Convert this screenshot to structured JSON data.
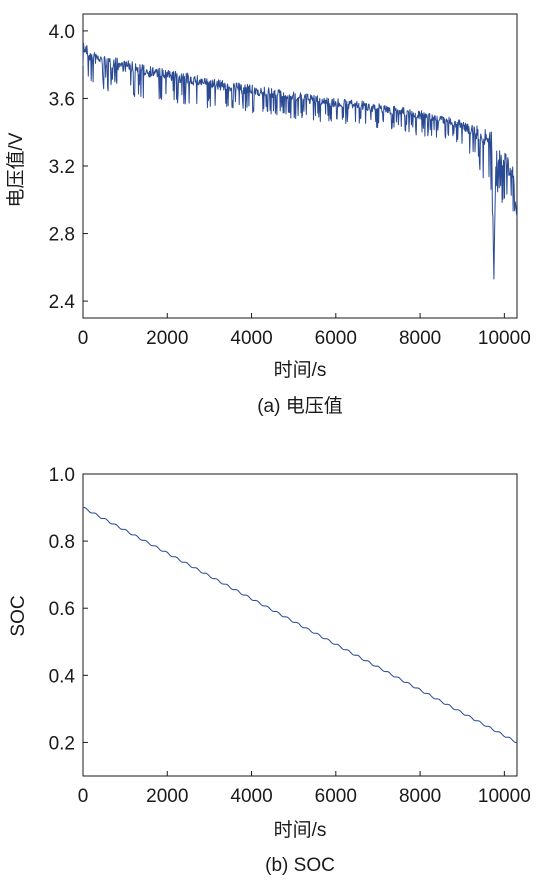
{
  "colors": {
    "series": "#2b4a94",
    "frame": "#1a1a1a"
  },
  "chart_data": [
    {
      "type": "line",
      "caption": "(a) 电压值",
      "xlabel": "时间/s",
      "ylabel": "电压值/V",
      "xlim": [
        0,
        10300
      ],
      "ylim": [
        2.3,
        4.1
      ],
      "xticks": [
        0,
        2000,
        4000,
        6000,
        8000,
        10000
      ],
      "xtick_labels": [
        "0",
        "2000",
        "4000",
        "6000",
        "8000",
        "10000"
      ],
      "yticks": [
        2.4,
        2.8,
        3.2,
        3.6,
        4.0
      ],
      "ytick_labels": [
        "2.4",
        "2.8",
        "3.2",
        "3.6",
        "4.0"
      ],
      "grid": false,
      "series": [
        {
          "x": [
            0,
            200,
            500,
            1000,
            1500,
            2000,
            2500,
            3000,
            3500,
            4000,
            4500,
            5000,
            5500,
            6000,
            6500,
            7000,
            7500,
            8000,
            8500,
            9000,
            9300,
            9500,
            9700,
            9750,
            9800,
            10000,
            10200,
            10300
          ],
          "y": [
            3.95,
            3.88,
            3.86,
            3.83,
            3.8,
            3.77,
            3.75,
            3.72,
            3.7,
            3.68,
            3.66,
            3.64,
            3.62,
            3.6,
            3.59,
            3.57,
            3.55,
            3.53,
            3.5,
            3.47,
            3.45,
            3.44,
            3.4,
            2.52,
            3.35,
            3.3,
            3.2,
            2.9
          ],
          "dip_values": [
            3.7,
            3.68,
            3.65,
            3.62,
            3.6,
            3.58,
            3.56,
            3.54,
            3.53,
            3.51,
            3.5,
            3.48,
            3.46,
            3.45,
            3.43,
            3.42,
            3.4,
            3.38,
            3.36,
            3.32,
            3.2,
            3.12,
            3.05,
            2.52,
            3.0,
            2.95,
            2.9,
            2.88
          ]
        }
      ]
    },
    {
      "type": "line",
      "caption": "(b) SOC",
      "xlabel": "时间/s",
      "ylabel": "SOC",
      "xlim": [
        0,
        10300
      ],
      "ylim": [
        0.1,
        1.0
      ],
      "xticks": [
        0,
        2000,
        4000,
        6000,
        8000,
        10000
      ],
      "xtick_labels": [
        "0",
        "2000",
        "4000",
        "6000",
        "8000",
        "10000"
      ],
      "yticks": [
        0.2,
        0.4,
        0.6,
        0.8,
        1.0
      ],
      "ytick_labels": [
        "0.2",
        "0.4",
        "0.6",
        "0.8",
        "1.0"
      ],
      "grid": false,
      "series": [
        {
          "x": [
            0,
            10300
          ],
          "y": [
            0.9,
            0.2
          ]
        }
      ]
    }
  ]
}
